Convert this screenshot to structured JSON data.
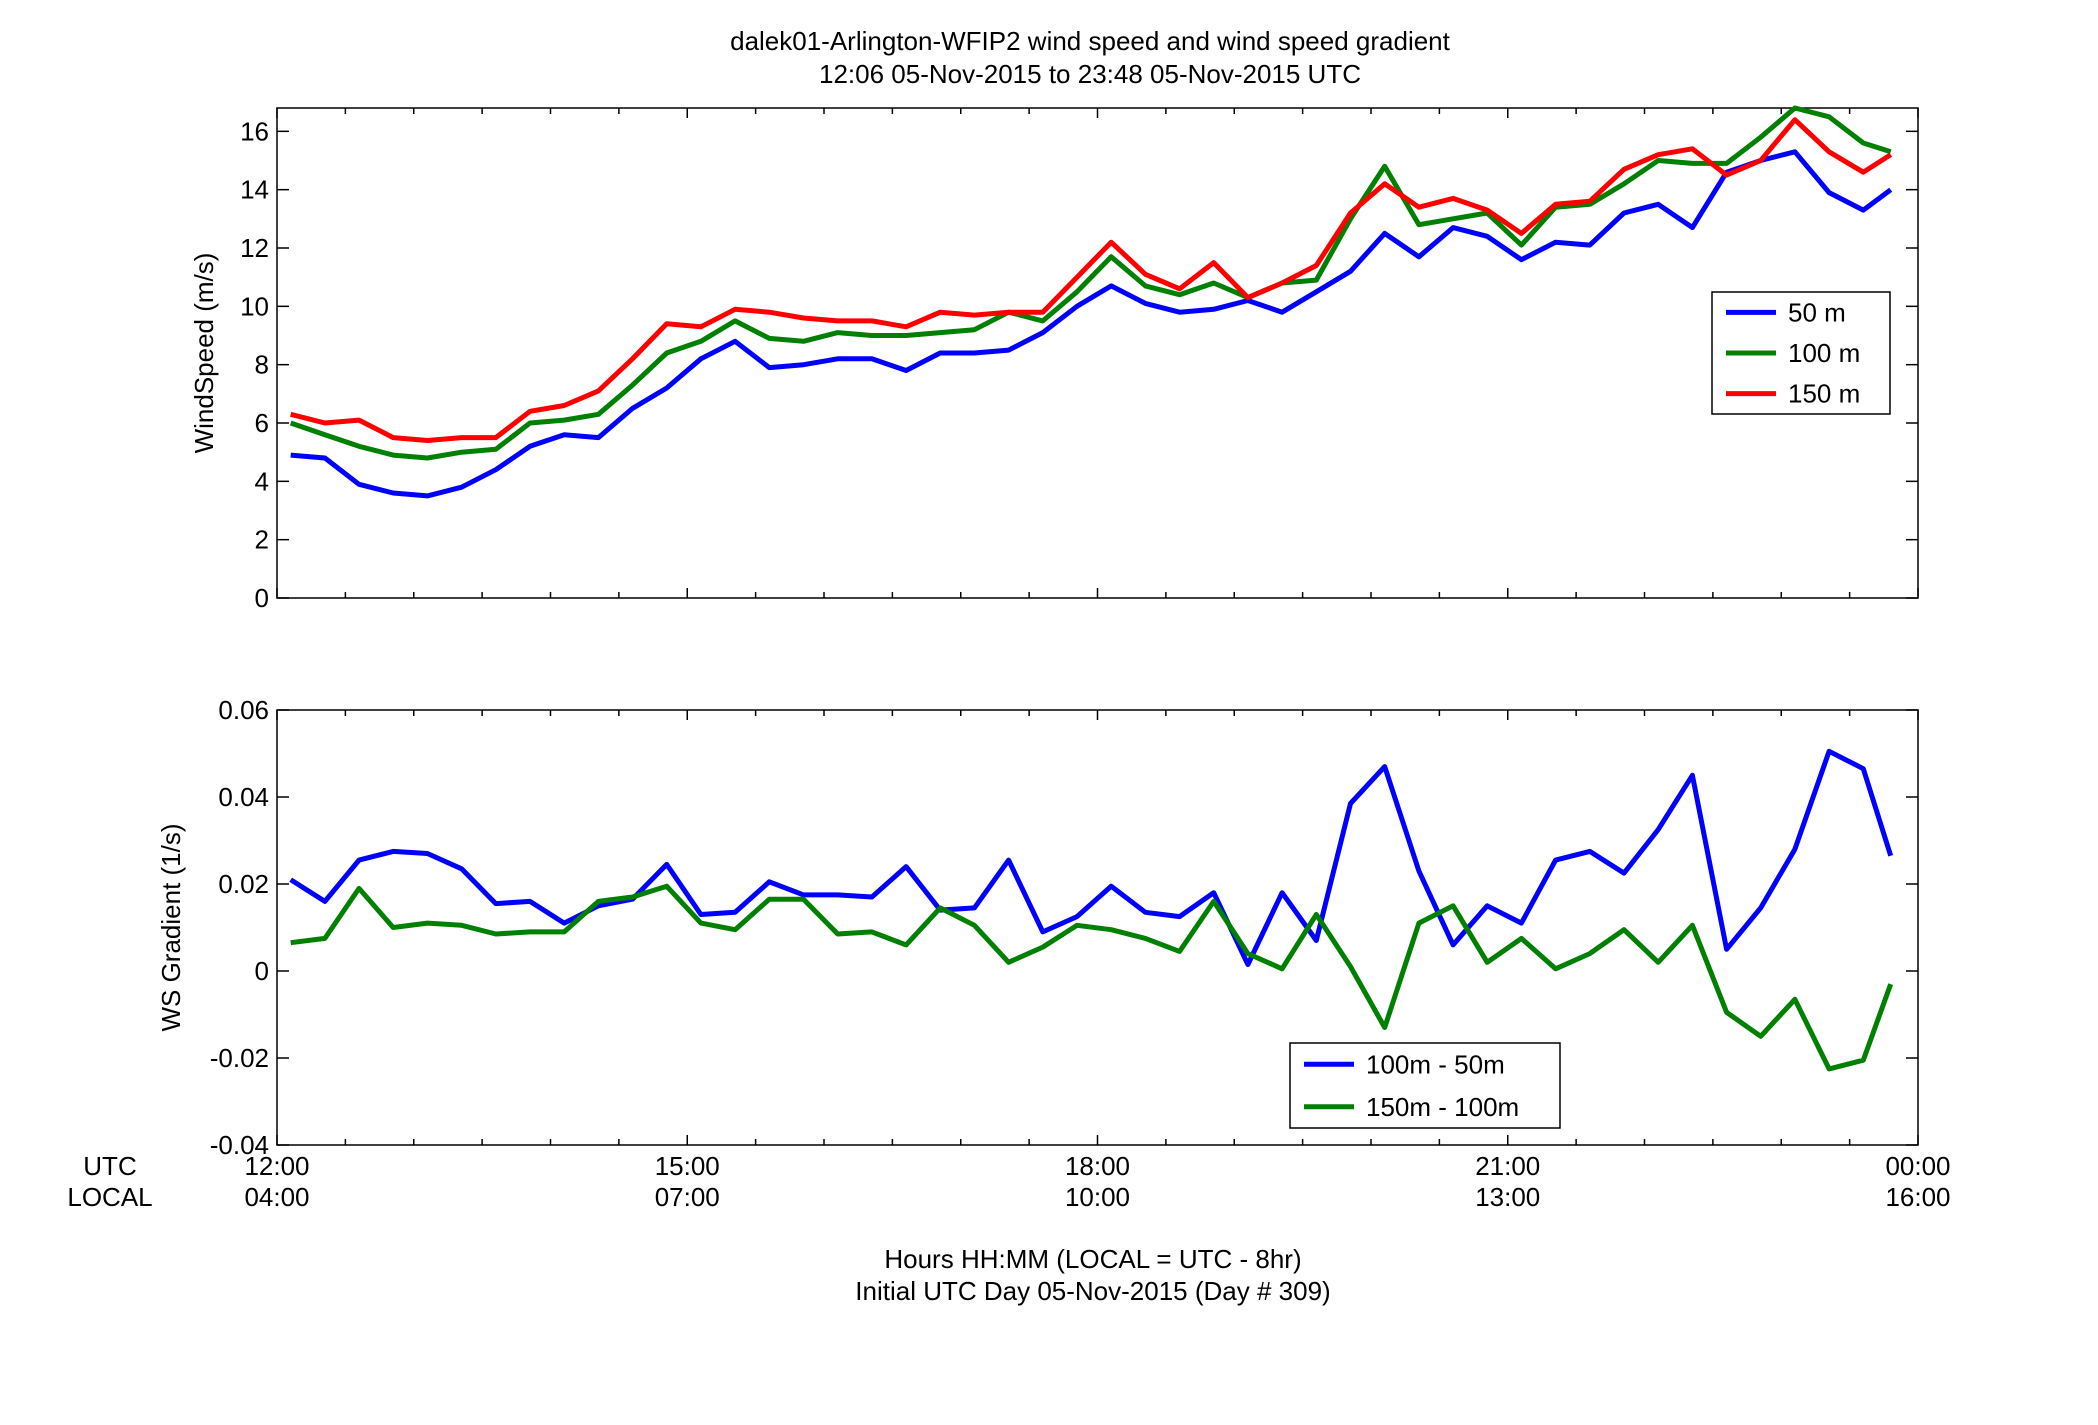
{
  "figure": {
    "title_line1": "dalek01-Arlington-WFIP2  wind speed and wind speed gradient",
    "title_line2": "12:06 05-Nov-2015 to 23:48 05-Nov-2015  UTC",
    "row_label_utc": "UTC",
    "row_label_local": "LOCAL",
    "xlabel_line1": "Hours HH:MM  (LOCAL = UTC - 8hr)",
    "xlabel_line2": "Initial UTC Day 05-Nov-2015 (Day # 309)",
    "utc_ticks": [
      "12:00",
      "15:00",
      "18:00",
      "21:00",
      "00:00"
    ],
    "local_ticks": [
      "04:00",
      "07:00",
      "10:00",
      "13:00",
      "16:00"
    ]
  },
  "chart_data": [
    {
      "type": "line",
      "ylabel": "WindSpeed (m/s)",
      "xlim_hours": [
        12,
        24
      ],
      "ylim": [
        0,
        16.8
      ],
      "yticks": [
        0,
        2,
        4,
        6,
        8,
        10,
        12,
        14,
        16
      ],
      "legend_position": "right",
      "x_hours": [
        12.1,
        12.35,
        12.6,
        12.85,
        13.1,
        13.35,
        13.6,
        13.85,
        14.1,
        14.35,
        14.6,
        14.85,
        15.1,
        15.35,
        15.6,
        15.85,
        16.1,
        16.35,
        16.6,
        16.85,
        17.1,
        17.35,
        17.6,
        17.85,
        18.1,
        18.35,
        18.6,
        18.85,
        19.1,
        19.35,
        19.6,
        19.85,
        20.1,
        20.35,
        20.6,
        20.85,
        21.1,
        21.35,
        21.6,
        21.85,
        22.1,
        22.35,
        22.6,
        22.85,
        23.1,
        23.35,
        23.6,
        23.8
      ],
      "series": [
        {
          "name": "50 m",
          "color": "#0000ff",
          "values": [
            4.9,
            4.8,
            3.9,
            3.6,
            3.5,
            3.8,
            4.4,
            5.2,
            5.6,
            5.5,
            6.5,
            7.2,
            8.2,
            8.8,
            7.9,
            8.0,
            8.2,
            8.2,
            7.8,
            8.4,
            8.4,
            8.5,
            9.1,
            10.0,
            10.7,
            10.1,
            9.8,
            9.9,
            10.2,
            9.8,
            10.5,
            11.2,
            12.5,
            11.7,
            12.7,
            12.4,
            11.6,
            12.2,
            12.1,
            13.2,
            13.5,
            12.7,
            14.6,
            15.0,
            15.3,
            13.9,
            13.3,
            14.0
          ]
        },
        {
          "name": "100 m",
          "color": "#008000",
          "values": [
            6.0,
            5.6,
            5.2,
            4.9,
            4.8,
            5.0,
            5.1,
            6.0,
            6.1,
            6.3,
            7.3,
            8.4,
            8.8,
            9.5,
            8.9,
            8.8,
            9.1,
            9.0,
            9.0,
            9.1,
            9.2,
            9.8,
            9.5,
            10.5,
            11.7,
            10.7,
            10.4,
            10.8,
            10.3,
            10.8,
            10.9,
            13.0,
            14.8,
            12.8,
            13.0,
            13.2,
            12.1,
            13.4,
            13.5,
            14.2,
            15.0,
            14.9,
            14.9,
            15.8,
            16.8,
            16.5,
            15.6,
            15.3
          ]
        },
        {
          "name": "150 m",
          "color": "#ff0000",
          "values": [
            6.3,
            6.0,
            6.1,
            5.5,
            5.4,
            5.5,
            5.5,
            6.4,
            6.6,
            7.1,
            8.2,
            9.4,
            9.3,
            9.9,
            9.8,
            9.6,
            9.5,
            9.5,
            9.3,
            9.8,
            9.7,
            9.8,
            9.8,
            11.0,
            12.2,
            11.1,
            10.6,
            11.5,
            10.3,
            10.8,
            11.4,
            13.2,
            14.2,
            13.4,
            13.7,
            13.3,
            12.5,
            13.5,
            13.6,
            14.7,
            15.2,
            15.4,
            14.5,
            15.0,
            16.4,
            15.3,
            14.6,
            15.2
          ]
        }
      ]
    },
    {
      "type": "line",
      "ylabel": "WS Gradient (1/s)",
      "xlim_hours": [
        12,
        24
      ],
      "ylim": [
        -0.04,
        0.06
      ],
      "yticks": [
        -0.04,
        -0.02,
        0,
        0.02,
        0.04,
        0.06
      ],
      "ytick_labels": [
        "-0.04",
        "-0.02",
        "0",
        "0.02",
        "0.04",
        "0.06"
      ],
      "legend_position": "bottom",
      "x_hours": [
        12.1,
        12.35,
        12.6,
        12.85,
        13.1,
        13.35,
        13.6,
        13.85,
        14.1,
        14.35,
        14.6,
        14.85,
        15.1,
        15.35,
        15.6,
        15.85,
        16.1,
        16.35,
        16.6,
        16.85,
        17.1,
        17.35,
        17.6,
        17.85,
        18.1,
        18.35,
        18.6,
        18.85,
        19.1,
        19.35,
        19.6,
        19.85,
        20.1,
        20.35,
        20.6,
        20.85,
        21.1,
        21.35,
        21.6,
        21.85,
        22.1,
        22.35,
        22.6,
        22.85,
        23.1,
        23.35,
        23.6,
        23.8
      ],
      "series": [
        {
          "name": "100m - 50m",
          "color": "#0000ff",
          "values": [
            0.021,
            0.016,
            0.0255,
            0.0275,
            0.027,
            0.0235,
            0.0155,
            0.016,
            0.011,
            0.015,
            0.0165,
            0.0245,
            0.013,
            0.0135,
            0.0205,
            0.0175,
            0.0175,
            0.017,
            0.024,
            0.014,
            0.0145,
            0.0255,
            0.009,
            0.0125,
            0.0195,
            0.0135,
            0.0125,
            0.018,
            0.0015,
            0.018,
            0.007,
            0.0385,
            0.047,
            0.023,
            0.006,
            0.015,
            0.011,
            0.0255,
            0.0275,
            0.0225,
            0.0325,
            0.045,
            0.005,
            0.0145,
            0.028,
            0.0505,
            0.0465,
            0.0265
          ]
        },
        {
          "name": "150m - 100m",
          "color": "#008000",
          "values": [
            0.0065,
            0.0075,
            0.019,
            0.01,
            0.011,
            0.0105,
            0.0085,
            0.009,
            0.009,
            0.016,
            0.017,
            0.0195,
            0.011,
            0.0095,
            0.0165,
            0.0165,
            0.0085,
            0.009,
            0.006,
            0.0145,
            0.0105,
            0.002,
            0.0055,
            0.0105,
            0.0095,
            0.0075,
            0.0045,
            0.016,
            0.004,
            0.0005,
            0.013,
            0.001,
            -0.013,
            0.011,
            0.015,
            0.002,
            0.0075,
            0.0005,
            0.004,
            0.0095,
            0.002,
            0.0105,
            -0.0095,
            -0.015,
            -0.0065,
            -0.0225,
            -0.0205,
            -0.003
          ]
        }
      ]
    }
  ]
}
